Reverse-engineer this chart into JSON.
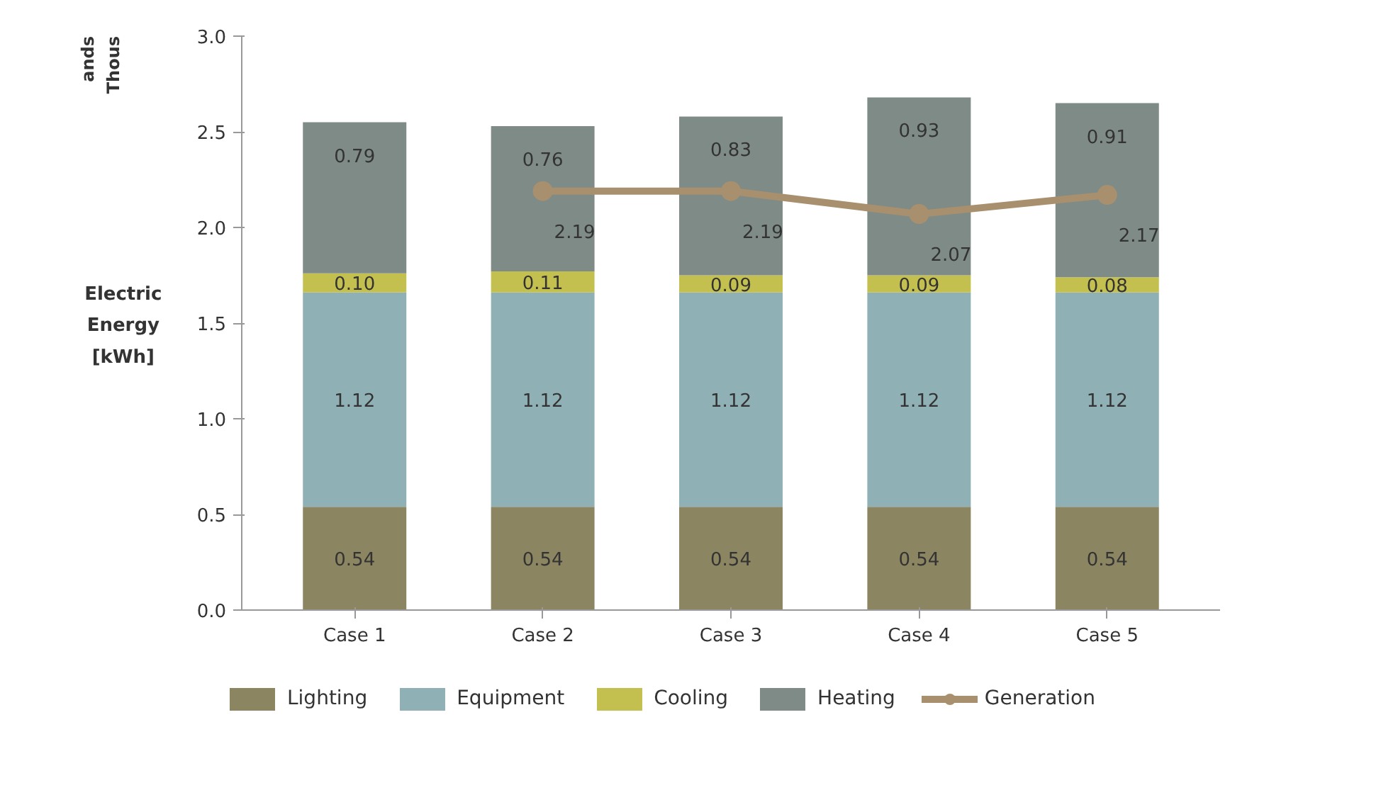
{
  "chart_data": {
    "type": "bar",
    "stacked": true,
    "ylabel": "Electric\nEnergy\n[kWh]",
    "annotations": [
      "Thous",
      "ands"
    ],
    "categories": [
      "Case 1",
      "Case 2",
      "Case 3",
      "Case 4",
      "Case 5"
    ],
    "series": [
      {
        "name": "Lighting",
        "color": "#8c8561",
        "values": [
          0.54,
          0.54,
          0.54,
          0.54,
          0.54
        ],
        "value_labels": [
          "0.54",
          "0.54",
          "0.54",
          "0.54",
          "0.54"
        ]
      },
      {
        "name": "Equipment",
        "color": "#8fb0b4",
        "values": [
          1.12,
          1.12,
          1.12,
          1.12,
          1.12
        ],
        "value_labels": [
          "1.12",
          "1.12",
          "1.12",
          "1.12",
          "1.12"
        ]
      },
      {
        "name": "Cooling",
        "color": "#c4c050",
        "values": [
          0.1,
          0.11,
          0.09,
          0.09,
          0.08
        ],
        "value_labels": [
          "0.10",
          "0.11",
          "0.09",
          "0.09",
          "0.08"
        ]
      },
      {
        "name": "Heating",
        "color": "#7f8b86",
        "values": [
          0.79,
          0.76,
          0.83,
          0.93,
          0.91
        ],
        "value_labels": [
          "0.79",
          "0.76",
          "0.83",
          "0.93",
          "0.91"
        ]
      },
      {
        "name": "Generation",
        "type": "line",
        "color": "#a8906f",
        "marker": "circle",
        "values": [
          null,
          2.19,
          2.19,
          2.07,
          2.17
        ],
        "value_labels": [
          null,
          "2.19",
          "2.19",
          "2.07",
          "2.17"
        ]
      }
    ],
    "ylim": [
      0,
      3
    ],
    "yticks": [
      {
        "value": 0,
        "label": "0.0"
      },
      {
        "value": 0.5,
        "label": "0.5"
      },
      {
        "value": 1,
        "label": "1.0"
      },
      {
        "value": 1.5,
        "label": "1.5"
      },
      {
        "value": 2,
        "label": "2.0"
      },
      {
        "value": 2.5,
        "label": "2.5"
      },
      {
        "value": 3,
        "label": "3.0"
      }
    ],
    "grid": false,
    "legend": "bottom"
  }
}
